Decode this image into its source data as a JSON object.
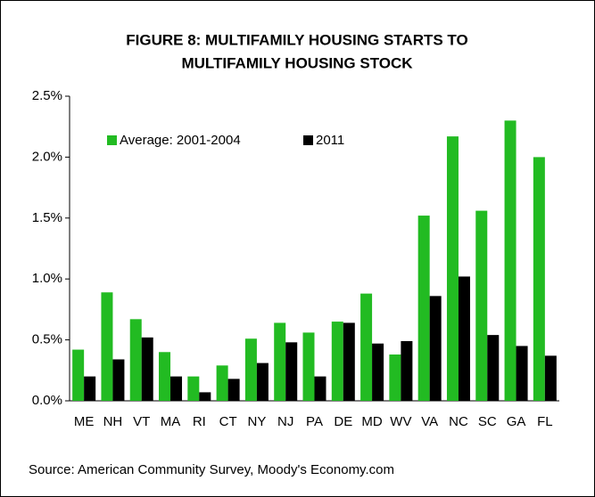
{
  "chart_data": {
    "type": "bar",
    "title": [
      "FIGURE 8: MULTIFAMILY HOUSING STARTS TO",
      "MULTIFAMILY HOUSING STOCK"
    ],
    "categories": [
      "ME",
      "NH",
      "VT",
      "MA",
      "RI",
      "CT",
      "NY",
      "NJ",
      "PA",
      "DE",
      "MD",
      "WV",
      "VA",
      "NC",
      "SC",
      "GA",
      "FL"
    ],
    "series": [
      {
        "name": "Average: 2001-2004",
        "color": "#22bb22",
        "values": [
          0.42,
          0.89,
          0.67,
          0.4,
          0.2,
          0.29,
          0.51,
          0.64,
          0.56,
          0.65,
          0.88,
          0.38,
          1.52,
          2.17,
          1.56,
          2.3,
          2.0
        ]
      },
      {
        "name": "2011",
        "color": "#000000",
        "values": [
          0.2,
          0.34,
          0.52,
          0.2,
          0.07,
          0.18,
          0.31,
          0.48,
          0.2,
          0.64,
          0.47,
          0.49,
          0.86,
          1.02,
          0.54,
          0.45,
          0.37
        ]
      }
    ],
    "ylim": [
      0,
      2.5
    ],
    "yticks": [
      {
        "value": 0,
        "label": "0.0%"
      },
      {
        "value": 0.5,
        "label": "0.5%"
      },
      {
        "value": 1,
        "label": "1.0%"
      },
      {
        "value": 1.5,
        "label": "1.5%"
      },
      {
        "value": 2,
        "label": "2.0%"
      },
      {
        "value": 2.5,
        "label": "2.5%"
      }
    ],
    "legend": "top-left",
    "source": "Source: American Community Survey, Moody's Economy.com"
  }
}
